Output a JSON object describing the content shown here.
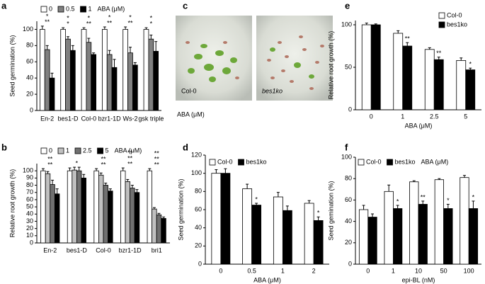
{
  "chart_data": [
    {
      "type": "bar",
      "panel_label": "a",
      "ylabel": "Seed germination (%)",
      "legend_title": "ABA (μM)",
      "categories": [
        "En-2",
        "bes1-D",
        "Col-0",
        "bzr1-1D",
        "Ws-2",
        "gsk triple"
      ],
      "series": [
        {
          "name": "0",
          "color": "#ffffff",
          "values": [
            100,
            100,
            100,
            100,
            100,
            100
          ],
          "errors": [
            4,
            2,
            2,
            3,
            3,
            2
          ]
        },
        {
          "name": "0.5",
          "color": "#808080",
          "values": [
            75,
            88,
            84,
            69,
            71,
            88
          ],
          "errors": [
            5,
            3,
            5,
            5,
            7,
            5
          ]
        },
        {
          "name": "1",
          "color": "#000000",
          "values": [
            40,
            74,
            69,
            53,
            56,
            73
          ],
          "errors": [
            6,
            6,
            2,
            10,
            3,
            12
          ]
        }
      ],
      "ylim": [
        0,
        110
      ],
      "yticks": [
        0,
        20,
        40,
        60,
        80,
        100
      ],
      "annotations": [
        {
          "category": "En-2",
          "text": "**"
        },
        {
          "category": "En-2",
          "text": "*"
        },
        {
          "category": "bes1-D",
          "text": "*"
        },
        {
          "category": "bes1-D",
          "text": "*"
        },
        {
          "category": "Col-0",
          "text": "**"
        },
        {
          "category": "Col-0",
          "text": "*"
        },
        {
          "category": "bzr1-1D",
          "text": "**"
        },
        {
          "category": "bzr1-1D",
          "text": "*"
        },
        {
          "category": "Ws-2",
          "text": "**"
        },
        {
          "category": "Ws-2",
          "text": "*"
        },
        {
          "category": "gsk triple",
          "text": "*"
        },
        {
          "category": "gsk triple",
          "text": "*"
        }
      ]
    },
    {
      "type": "bar",
      "panel_label": "b",
      "ylabel": "Relative root growth (%)",
      "legend_title": "ABA (μM)",
      "categories": [
        "En-2",
        "bes1-D",
        "Col-0",
        "bzr1-1D",
        "bri1"
      ],
      "series": [
        {
          "name": "0",
          "color": "#ffffff",
          "values": [
            100,
            100,
            100,
            100,
            100
          ],
          "errors": [
            3,
            4,
            3,
            4,
            3
          ]
        },
        {
          "name": "1",
          "color": "#c0c0c0",
          "values": [
            96,
            101,
            94,
            85,
            47
          ],
          "errors": [
            3,
            4,
            3,
            3,
            2
          ]
        },
        {
          "name": "2.5",
          "color": "#707070",
          "values": [
            81,
            100,
            80,
            76,
            39
          ],
          "errors": [
            6,
            5,
            3,
            4,
            2
          ]
        },
        {
          "name": "5",
          "color": "#000000",
          "values": [
            68,
            90,
            72,
            70,
            34
          ],
          "errors": [
            7,
            5,
            3,
            4,
            2
          ]
        }
      ],
      "ylim": [
        0,
        110
      ],
      "yticks": [
        0,
        10,
        20,
        30,
        40,
        50,
        60,
        70,
        80,
        90,
        100
      ],
      "annotations": [
        {
          "category": "En-2",
          "text": "**"
        },
        {
          "category": "En-2",
          "text": "**"
        },
        {
          "category": "bes1-D",
          "text": "*"
        },
        {
          "category": "Col-0",
          "text": "**"
        },
        {
          "category": "Col-0",
          "text": "**"
        },
        {
          "category": "bzr1-1D",
          "text": "**"
        },
        {
          "category": "bzr1-1D",
          "text": "**"
        },
        {
          "category": "bzr1-1D",
          "text": "**"
        },
        {
          "category": "bri1",
          "text": "**"
        },
        {
          "category": "bri1",
          "text": "**"
        },
        {
          "category": "bri1",
          "text": "**"
        }
      ]
    },
    {
      "type": "bar",
      "panel_label": "d",
      "ylabel": "Seed germination (%)",
      "xlabel": "ABA (μM)",
      "categories": [
        "0",
        "0.5",
        "1",
        "2"
      ],
      "series": [
        {
          "name": "Col-0",
          "color": "#ffffff",
          "values": [
            100,
            83,
            74,
            67
          ],
          "errors": [
            4,
            5,
            5,
            3
          ]
        },
        {
          "name": "bes1ko",
          "color": "#000000",
          "values": [
            100,
            65,
            59,
            48
          ],
          "errors": [
            5,
            2,
            5,
            4
          ]
        }
      ],
      "ylim": [
        0,
        120
      ],
      "yticks": [
        0,
        20,
        40,
        60,
        80,
        100,
        120
      ],
      "annotations": [
        {
          "category": "0.5",
          "text": "*"
        },
        {
          "category": "2",
          "text": "*"
        }
      ]
    },
    {
      "type": "bar",
      "panel_label": "e",
      "ylabel": "Relative root growth (%)",
      "xlabel": "ABA (μM)",
      "categories": [
        "0",
        "1",
        "2.5",
        "5"
      ],
      "series": [
        {
          "name": "Col-0",
          "color": "#ffffff",
          "values": [
            100,
            90,
            71,
            58
          ],
          "errors": [
            2,
            3,
            2,
            3
          ]
        },
        {
          "name": "bes1ko",
          "color": "#000000",
          "values": [
            100,
            75,
            59,
            47
          ],
          "errors": [
            1,
            4,
            3,
            2
          ]
        }
      ],
      "ylim": [
        0,
        105
      ],
      "yticks": [
        0,
        50,
        100
      ],
      "annotations": [
        {
          "category": "1",
          "text": "**"
        },
        {
          "category": "2.5",
          "text": "**"
        },
        {
          "category": "5",
          "text": "*"
        }
      ]
    },
    {
      "type": "bar",
      "panel_label": "f",
      "ylabel": "Seed gemination (%)",
      "xlabel": "epi-BL (nM)",
      "legend_title": "ABA (μM)",
      "categories": [
        "0",
        "1",
        "10",
        "50",
        "100"
      ],
      "series": [
        {
          "name": "Col-0",
          "color": "#ffffff",
          "values": [
            51,
            68,
            77,
            79,
            81
          ],
          "errors": [
            4,
            6,
            1,
            1,
            2
          ]
        },
        {
          "name": "bes1ko",
          "color": "#000000",
          "values": [
            44,
            52,
            56,
            52,
            52
          ],
          "errors": [
            3,
            3,
            3,
            4,
            7
          ]
        }
      ],
      "ylim": [
        0,
        100
      ],
      "yticks": [
        0,
        20,
        40,
        60,
        80,
        100
      ],
      "annotations": [
        {
          "category": "1",
          "text": "*"
        },
        {
          "category": "10",
          "text": "**"
        },
        {
          "category": "50",
          "text": "*"
        },
        {
          "category": "100",
          "text": "*"
        }
      ]
    }
  ],
  "photo_panel": {
    "panel_label": "c",
    "labels": [
      "Col-0",
      "bes1ko"
    ],
    "caption": "ABA (μM)"
  }
}
